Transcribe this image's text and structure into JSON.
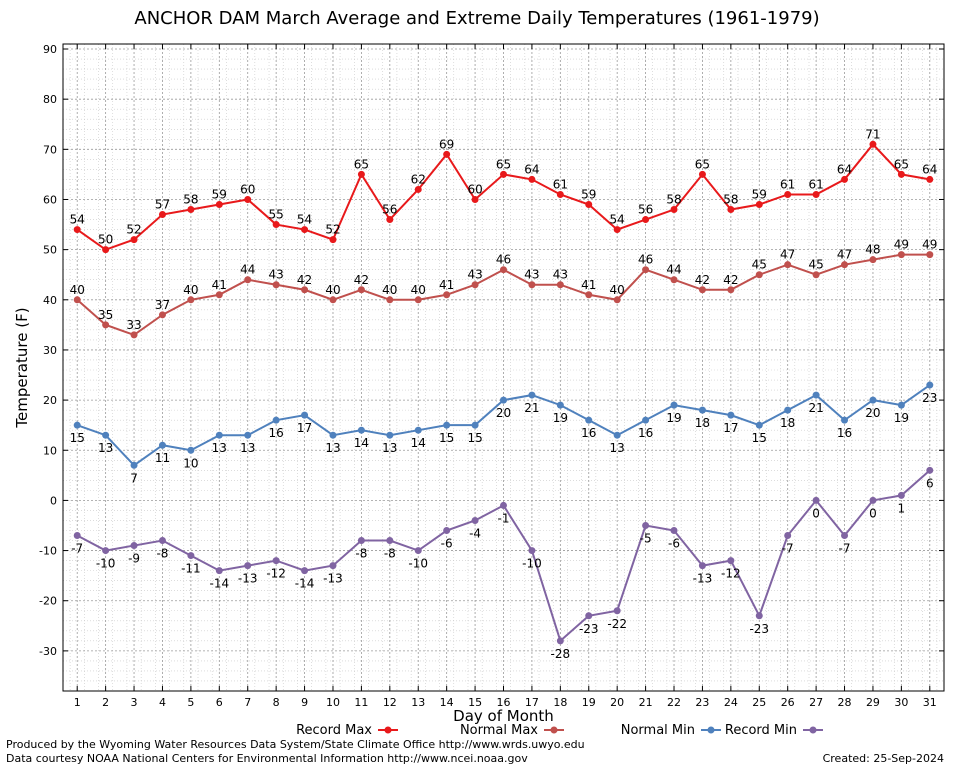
{
  "chart_data": {
    "type": "line",
    "title": "ANCHOR DAM March Average and Extreme Daily Temperatures (1961-1979)",
    "xlabel": "Day of Month",
    "ylabel": "Temperature (F)",
    "ylim": [
      -38,
      91
    ],
    "yticks": [
      -30,
      -20,
      -10,
      0,
      10,
      20,
      30,
      40,
      50,
      60,
      70,
      80,
      90
    ],
    "x": [
      1,
      2,
      3,
      4,
      5,
      6,
      7,
      8,
      9,
      10,
      11,
      12,
      13,
      14,
      15,
      16,
      17,
      18,
      19,
      20,
      21,
      22,
      23,
      24,
      25,
      26,
      27,
      28,
      29,
      30,
      31
    ],
    "grid": true,
    "legend_position": "bottom",
    "series": [
      {
        "name": "Record Max",
        "color": "#e8191b",
        "values": [
          54,
          50,
          52,
          57,
          58,
          59,
          60,
          55,
          54,
          52,
          65,
          56,
          62,
          69,
          60,
          65,
          64,
          61,
          59,
          54,
          56,
          58,
          65,
          58,
          59,
          61,
          61,
          64,
          71,
          65,
          64
        ]
      },
      {
        "name": "Normal Max",
        "color": "#c0504d",
        "values": [
          40,
          35,
          33,
          37,
          40,
          41,
          44,
          43,
          42,
          40,
          42,
          40,
          40,
          41,
          43,
          46,
          43,
          43,
          41,
          40,
          46,
          44,
          42,
          42,
          45,
          47,
          45,
          47,
          48,
          49,
          49
        ]
      },
      {
        "name": "Normal Min",
        "color": "#4f81bd",
        "values": [
          15,
          13,
          7,
          11,
          10,
          13,
          13,
          16,
          17,
          13,
          14,
          13,
          14,
          15,
          15,
          20,
          21,
          19,
          16,
          13,
          16,
          19,
          18,
          17,
          15,
          18,
          21,
          16,
          20,
          19,
          23
        ]
      },
      {
        "name": "Record Min",
        "color": "#8064a2",
        "values": [
          -7,
          -10,
          -9,
          -8,
          -11,
          -14,
          -13,
          -12,
          -14,
          -13,
          -8,
          -8,
          -10,
          -6,
          -4,
          -1,
          -10,
          -28,
          -23,
          -22,
          -5,
          -6,
          -13,
          -12,
          -23,
          -7,
          0,
          -7,
          0,
          1,
          6
        ]
      }
    ]
  },
  "footer": {
    "produced_by": "Produced by the Wyoming Water Resources Data System/State Climate Office http://www.wrds.uwyo.edu",
    "courtesy": "Data courtesy NOAA National Centers for Environmental Information http://www.ncei.noaa.gov",
    "created": "Created:  25-Sep-2024"
  }
}
